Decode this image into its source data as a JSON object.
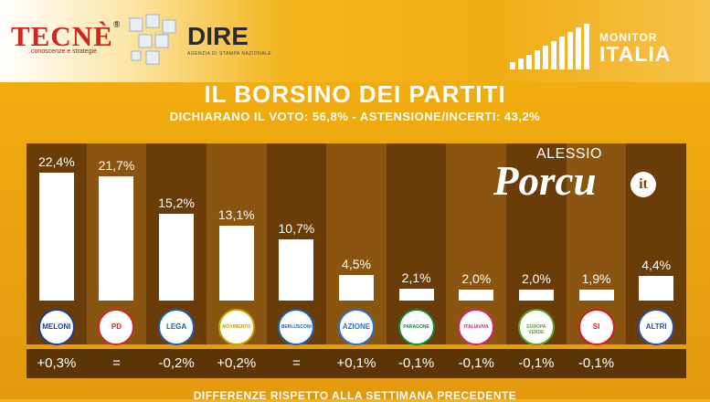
{
  "header": {
    "tecne_logo": "TECNÈ",
    "tecne_registered": "®",
    "tecne_tagline": "conoscenze e strategie",
    "dire_logo": "DIRE",
    "dire_tagline": "AGENZIA DI STAMPA NAZIONALE",
    "monitor_small": "MONITOR",
    "monitor_big": "ITALIA"
  },
  "watermark": {
    "small": "ALESSIO",
    "big": "Porcu",
    "badge": "it"
  },
  "colors": {
    "background": "#eda710",
    "panel": "#7d4a0c",
    "bar": "#ffffff",
    "text": "#ffffff"
  },
  "chart_data": {
    "type": "bar",
    "title": "IL BORSINO DEI PARTITI",
    "subtitle": "DICHIARANO IL VOTO: 56,8% - ASTENSIONE/INCERTI: 43,2%",
    "categories": [
      "FRATELLI D'ITALIA",
      "PD",
      "LEGA",
      "MOVIMENTO 5 STELLE",
      "FORZA ITALIA",
      "AZIONE",
      "ITALEXIT",
      "ITALIA VIVA",
      "EUROPA VERDE",
      "SINISTRA ITALIANA",
      "ALTRI"
    ],
    "values": [
      22.4,
      21.7,
      15.2,
      13.1,
      10.7,
      4.5,
      2.1,
      2.0,
      2.0,
      1.9,
      4.4
    ],
    "value_labels": [
      "22,4%",
      "21,7%",
      "15,2%",
      "13,1%",
      "10,7%",
      "4,5%",
      "2,1%",
      "2,0%",
      "2,0%",
      "1,9%",
      "4,4%"
    ],
    "logo_labels": [
      "MELONI",
      "PD",
      "LEGA",
      "MOVIMENTO",
      "BERLUSCONI",
      "AZIONE",
      "PARAGONE",
      "ITALIAVIVA",
      "EUROPA VERDE",
      "SI",
      "ALTRI"
    ],
    "logo_colors": [
      "#1b3f8f",
      "#c92a2a",
      "#1b5fae",
      "#c9a100",
      "#1b63b8",
      "#2a6fd0",
      "#0f8a3a",
      "#d6246e",
      "#5aa02c",
      "#d71920",
      "#2b4fa3"
    ],
    "differences": [
      "+0,3%",
      "=",
      "-0,2%",
      "+0,2%",
      "=",
      "+0,1%",
      "-0,1%",
      "-0,1%",
      "-0,1%",
      "-0,1%",
      ""
    ],
    "footer": "DIFFERENZE RISPETTO ALLA SETTIMANA PRECEDENTE",
    "ylim": [
      0,
      22.4
    ],
    "legend": "none",
    "grid": false
  }
}
